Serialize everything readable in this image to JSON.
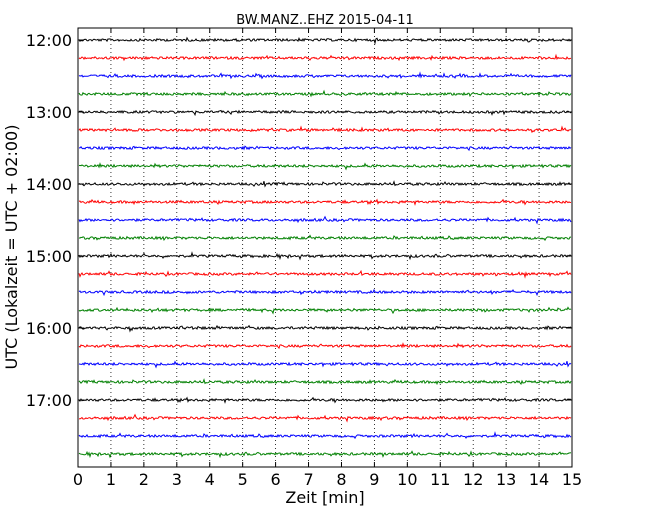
{
  "chart_data": {
    "type": "line",
    "title": "BW.MANZ..EHZ 2015-04-11",
    "xlabel": "Zeit  [min]",
    "ylabel": "UTC (Lokalzeit = UTC + 02:00)",
    "xlim": [
      0,
      15
    ],
    "x_ticks": [
      "0",
      "1",
      "2",
      "3",
      "4",
      "5",
      "6",
      "7",
      "8",
      "9",
      "10",
      "11",
      "12",
      "13",
      "14",
      "15"
    ],
    "y_ticks": [
      "12:00",
      "13:00",
      "14:00",
      "15:00",
      "16:00",
      "17:00"
    ],
    "grid": "vertical dotted at each minute",
    "traces": [
      {
        "start": "12:00",
        "color": "#000000"
      },
      {
        "start": "12:15",
        "color": "#ff0000"
      },
      {
        "start": "12:30",
        "color": "#0000ff"
      },
      {
        "start": "12:45",
        "color": "#008000"
      },
      {
        "start": "13:00",
        "color": "#000000"
      },
      {
        "start": "13:15",
        "color": "#ff0000"
      },
      {
        "start": "13:30",
        "color": "#0000ff"
      },
      {
        "start": "13:45",
        "color": "#008000"
      },
      {
        "start": "14:00",
        "color": "#000000"
      },
      {
        "start": "14:15",
        "color": "#ff0000"
      },
      {
        "start": "14:30",
        "color": "#0000ff"
      },
      {
        "start": "14:45",
        "color": "#008000"
      },
      {
        "start": "15:00",
        "color": "#000000"
      },
      {
        "start": "15:15",
        "color": "#ff0000"
      },
      {
        "start": "15:30",
        "color": "#0000ff"
      },
      {
        "start": "15:45",
        "color": "#008000"
      },
      {
        "start": "16:00",
        "color": "#000000"
      },
      {
        "start": "16:15",
        "color": "#ff0000"
      },
      {
        "start": "16:30",
        "color": "#0000ff"
      },
      {
        "start": "16:45",
        "color": "#008000"
      },
      {
        "start": "17:00",
        "color": "#000000"
      },
      {
        "start": "17:15",
        "color": "#ff0000"
      },
      {
        "start": "17:30",
        "color": "#0000ff"
      },
      {
        "start": "17:45",
        "color": "#008000"
      }
    ]
  }
}
